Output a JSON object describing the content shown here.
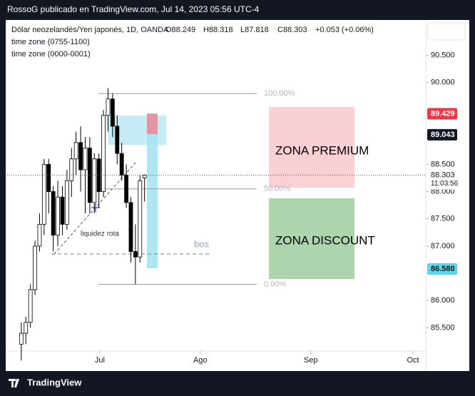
{
  "header": {
    "title": "RossoG publicado en TradingView.com, Jul 14, 2023 05:56 UTC-4"
  },
  "footer": {
    "brand": "TradingView"
  },
  "legend": {
    "symbol": "Dólar neozelandés/Yen japonés, 1D, OANDA",
    "open": "O88.249",
    "high": "H88.318",
    "low": "L87.818",
    "close": "C88.303",
    "change": "+0.053 (+0.06%)",
    "indicators": [
      "time zone (0755-1100)",
      "time zone (0000-0001)"
    ]
  },
  "chart_data": {
    "type": "candlestick",
    "open": [
      85.2,
      85.4,
      85.6,
      86.2,
      87.0,
      87.4,
      88.5,
      88.0,
      87.2,
      87.9,
      87.4,
      88.2,
      88.6,
      88.9,
      88.4,
      88.8,
      87.8,
      88.6,
      88.0,
      89.4,
      89.7,
      89.2,
      88.7,
      88.3,
      87.8,
      86.9,
      86.8,
      88.249
    ],
    "high": [
      85.6,
      85.7,
      86.3,
      87.1,
      87.6,
      88.6,
      88.6,
      88.1,
      88.2,
      88.1,
      88.4,
      88.8,
      89.1,
      89.2,
      89.0,
      89.0,
      88.7,
      88.7,
      89.5,
      89.9,
      89.8,
      89.4,
      88.9,
      88.5,
      87.9,
      87.4,
      88.3,
      88.318
    ],
    "low": [
      84.9,
      85.2,
      85.5,
      86.1,
      86.9,
      87.2,
      87.6,
      86.9,
      87.0,
      87.2,
      87.3,
      87.9,
      88.3,
      88.0,
      87.6,
      87.6,
      87.6,
      87.7,
      87.9,
      89.1,
      89.0,
      88.5,
      88.2,
      87.7,
      86.7,
      86.3,
      86.7,
      87.818
    ],
    "close": [
      85.4,
      85.6,
      86.2,
      87.0,
      87.4,
      88.5,
      88.0,
      87.2,
      87.9,
      87.4,
      88.2,
      88.6,
      88.9,
      88.4,
      88.8,
      87.8,
      88.6,
      88.0,
      89.4,
      89.7,
      89.2,
      88.7,
      88.3,
      87.8,
      86.9,
      86.8,
      88.2,
      88.303
    ],
    "up_color": "#ffffff",
    "down_color": "#000000",
    "xlim": [
      -3.1,
      88.6
    ],
    "xticks": [
      {
        "value": 17.2,
        "label": "Jul"
      },
      {
        "value": 39.2,
        "label": "Ago"
      },
      {
        "value": 63.4,
        "label": "Sep"
      },
      {
        "value": 85.8,
        "label": "Oct"
      }
    ],
    "ylim": [
      84.72,
      91.15
    ],
    "yticks": [
      {
        "value": 90.5,
        "label": "90.500"
      },
      {
        "value": 90,
        "label": "90.000"
      },
      {
        "value": 88.5,
        "label": "88.500"
      },
      {
        "value": 88,
        "label": "88.000"
      },
      {
        "value": 87.5,
        "label": "87.500"
      },
      {
        "value": 87,
        "label": "87.000"
      },
      {
        "value": 86,
        "label": "86.000"
      },
      {
        "value": 85.5,
        "label": "85.500"
      }
    ],
    "price_labels": [
      {
        "price": 89.429,
        "color": "#f23645",
        "text_color": "#ffffff"
      },
      {
        "price": 89.043,
        "color": "#131722",
        "text_color": "#ffffff"
      },
      {
        "price": 88.303,
        "color": "#ffffff",
        "text_color": "#131722",
        "sub": "11:03:56"
      },
      {
        "price": {
          "value": 86.58,
          "label": "86.580"
        },
        "color": "#5fd4e6",
        "text_color": "#131722"
      }
    ],
    "fib_levels": [
      {
        "price": 89.8,
        "label": "100.00%"
      },
      {
        "price": 88.05,
        "label": "50.00%"
      },
      {
        "price": 86.3,
        "label": "0.00%"
      }
    ],
    "annotations": {
      "premium": "ZONA PREMIUM",
      "discount": "ZONA DISCOUNT",
      "bos": "bos",
      "liquidity": "liquidez rota"
    }
  }
}
